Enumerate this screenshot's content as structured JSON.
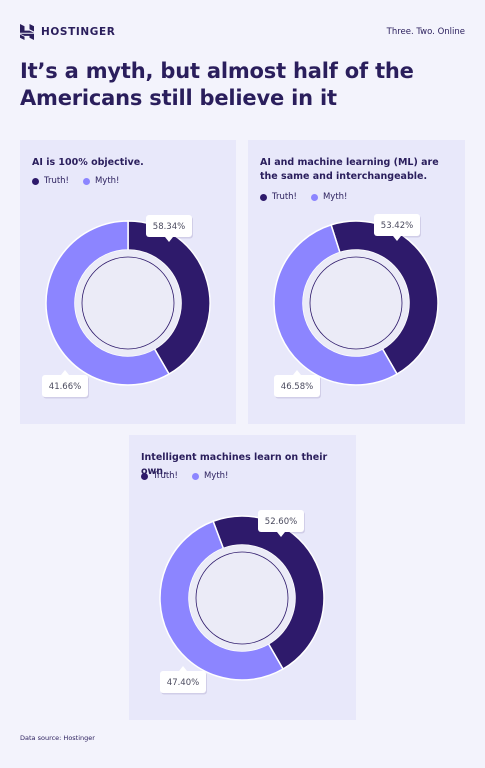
{
  "header": {
    "brand": "HOSTINGER",
    "tagline": "Three. Two. Online"
  },
  "headline": "It’s a myth, but almost half of the Americans still believe in it",
  "legend": {
    "truth": "Truth!",
    "myth": "Myth!"
  },
  "colors": {
    "truth": "#2e1a6b",
    "myth": "#8c85ff",
    "card": "#e8e8fa",
    "background": "#f3f3fc"
  },
  "chart_data": [
    {
      "type": "pie",
      "title": "AI is 100% objective.",
      "categories": [
        "Truth!",
        "Myth!"
      ],
      "values": [
        41.66,
        58.34
      ],
      "labels": [
        "41.66%",
        "58.34%"
      ]
    },
    {
      "type": "pie",
      "title": "AI and machine learning (ML) are the same and interchangeable.",
      "categories": [
        "Truth!",
        "Myth!"
      ],
      "values": [
        46.58,
        53.42
      ],
      "labels": [
        "46.58%",
        "53.42%"
      ]
    },
    {
      "type": "pie",
      "title": "Intelligent machines learn on their own.",
      "categories": [
        "Truth!",
        "Myth!"
      ],
      "values": [
        47.4,
        52.6
      ],
      "labels": [
        "47.40%",
        "52.60%"
      ]
    }
  ],
  "footer": {
    "source": "Data source: Hostinger"
  }
}
